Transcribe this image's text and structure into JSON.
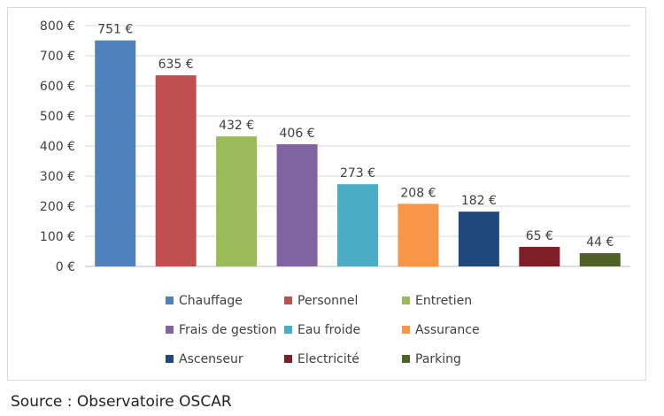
{
  "chart_data": {
    "type": "bar",
    "categories": [
      "Chauffage",
      "Personnel",
      "Entretien",
      "Frais de gestion",
      "Eau froide",
      "Assurance",
      "Ascenseur",
      "Electricité",
      "Parking"
    ],
    "values": [
      751,
      635,
      432,
      406,
      273,
      208,
      182,
      65,
      44
    ],
    "data_labels": [
      "751 €",
      "635 €",
      "432 €",
      "406 €",
      "273 €",
      "208 €",
      "182 €",
      "65 €",
      "44 €"
    ],
    "colors": [
      "#4f81bd",
      "#c0504d",
      "#9bbb59",
      "#8064a2",
      "#4bacc6",
      "#f79646",
      "#1f497d",
      "#7f1f27",
      "#4f6228"
    ],
    "ylim": [
      0,
      800
    ],
    "y_ticks": [
      0,
      100,
      200,
      300,
      400,
      500,
      600,
      700,
      800
    ],
    "y_tick_labels": [
      "0 €",
      "100 €",
      "200 €",
      "300 €",
      "400 €",
      "500 €",
      "600 €",
      "700 €",
      "800 €"
    ],
    "grid": true,
    "legend_placement": "bottom",
    "title": "",
    "xlabel": "",
    "ylabel": ""
  },
  "source_text": "Source : Observatoire OSCAR"
}
